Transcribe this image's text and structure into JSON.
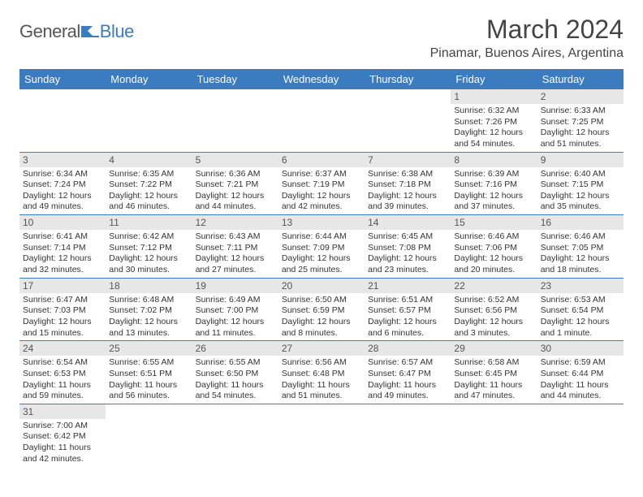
{
  "logo": {
    "general": "General",
    "blue": "Blue"
  },
  "title": "March 2024",
  "location": "Pinamar, Buenos Aires, Argentina",
  "colors": {
    "header_bg": "#3b7bbf",
    "header_text": "#ffffff",
    "daynum_bg": "#e7e7e7",
    "border": "#3b7bbf",
    "text": "#333333",
    "logo_blue": "#3b7bbf",
    "logo_gray": "#555555"
  },
  "day_headers": [
    "Sunday",
    "Monday",
    "Tuesday",
    "Wednesday",
    "Thursday",
    "Friday",
    "Saturday"
  ],
  "weeks": [
    [
      null,
      null,
      null,
      null,
      null,
      {
        "n": "1",
        "sr": "6:32 AM",
        "ss": "7:26 PM",
        "dl": "12 hours and 54 minutes."
      },
      {
        "n": "2",
        "sr": "6:33 AM",
        "ss": "7:25 PM",
        "dl": "12 hours and 51 minutes."
      }
    ],
    [
      {
        "n": "3",
        "sr": "6:34 AM",
        "ss": "7:24 PM",
        "dl": "12 hours and 49 minutes."
      },
      {
        "n": "4",
        "sr": "6:35 AM",
        "ss": "7:22 PM",
        "dl": "12 hours and 46 minutes."
      },
      {
        "n": "5",
        "sr": "6:36 AM",
        "ss": "7:21 PM",
        "dl": "12 hours and 44 minutes."
      },
      {
        "n": "6",
        "sr": "6:37 AM",
        "ss": "7:19 PM",
        "dl": "12 hours and 42 minutes."
      },
      {
        "n": "7",
        "sr": "6:38 AM",
        "ss": "7:18 PM",
        "dl": "12 hours and 39 minutes."
      },
      {
        "n": "8",
        "sr": "6:39 AM",
        "ss": "7:16 PM",
        "dl": "12 hours and 37 minutes."
      },
      {
        "n": "9",
        "sr": "6:40 AM",
        "ss": "7:15 PM",
        "dl": "12 hours and 35 minutes."
      }
    ],
    [
      {
        "n": "10",
        "sr": "6:41 AM",
        "ss": "7:14 PM",
        "dl": "12 hours and 32 minutes."
      },
      {
        "n": "11",
        "sr": "6:42 AM",
        "ss": "7:12 PM",
        "dl": "12 hours and 30 minutes."
      },
      {
        "n": "12",
        "sr": "6:43 AM",
        "ss": "7:11 PM",
        "dl": "12 hours and 27 minutes."
      },
      {
        "n": "13",
        "sr": "6:44 AM",
        "ss": "7:09 PM",
        "dl": "12 hours and 25 minutes."
      },
      {
        "n": "14",
        "sr": "6:45 AM",
        "ss": "7:08 PM",
        "dl": "12 hours and 23 minutes."
      },
      {
        "n": "15",
        "sr": "6:46 AM",
        "ss": "7:06 PM",
        "dl": "12 hours and 20 minutes."
      },
      {
        "n": "16",
        "sr": "6:46 AM",
        "ss": "7:05 PM",
        "dl": "12 hours and 18 minutes."
      }
    ],
    [
      {
        "n": "17",
        "sr": "6:47 AM",
        "ss": "7:03 PM",
        "dl": "12 hours and 15 minutes."
      },
      {
        "n": "18",
        "sr": "6:48 AM",
        "ss": "7:02 PM",
        "dl": "12 hours and 13 minutes."
      },
      {
        "n": "19",
        "sr": "6:49 AM",
        "ss": "7:00 PM",
        "dl": "12 hours and 11 minutes."
      },
      {
        "n": "20",
        "sr": "6:50 AM",
        "ss": "6:59 PM",
        "dl": "12 hours and 8 minutes."
      },
      {
        "n": "21",
        "sr": "6:51 AM",
        "ss": "6:57 PM",
        "dl": "12 hours and 6 minutes."
      },
      {
        "n": "22",
        "sr": "6:52 AM",
        "ss": "6:56 PM",
        "dl": "12 hours and 3 minutes."
      },
      {
        "n": "23",
        "sr": "6:53 AM",
        "ss": "6:54 PM",
        "dl": "12 hours and 1 minute."
      }
    ],
    [
      {
        "n": "24",
        "sr": "6:54 AM",
        "ss": "6:53 PM",
        "dl": "11 hours and 59 minutes."
      },
      {
        "n": "25",
        "sr": "6:55 AM",
        "ss": "6:51 PM",
        "dl": "11 hours and 56 minutes."
      },
      {
        "n": "26",
        "sr": "6:55 AM",
        "ss": "6:50 PM",
        "dl": "11 hours and 54 minutes."
      },
      {
        "n": "27",
        "sr": "6:56 AM",
        "ss": "6:48 PM",
        "dl": "11 hours and 51 minutes."
      },
      {
        "n": "28",
        "sr": "6:57 AM",
        "ss": "6:47 PM",
        "dl": "11 hours and 49 minutes."
      },
      {
        "n": "29",
        "sr": "6:58 AM",
        "ss": "6:45 PM",
        "dl": "11 hours and 47 minutes."
      },
      {
        "n": "30",
        "sr": "6:59 AM",
        "ss": "6:44 PM",
        "dl": "11 hours and 44 minutes."
      }
    ],
    [
      {
        "n": "31",
        "sr": "7:00 AM",
        "ss": "6:42 PM",
        "dl": "11 hours and 42 minutes."
      },
      null,
      null,
      null,
      null,
      null,
      null
    ]
  ],
  "labels": {
    "sunrise": "Sunrise:",
    "sunset": "Sunset:",
    "daylight": "Daylight:"
  }
}
